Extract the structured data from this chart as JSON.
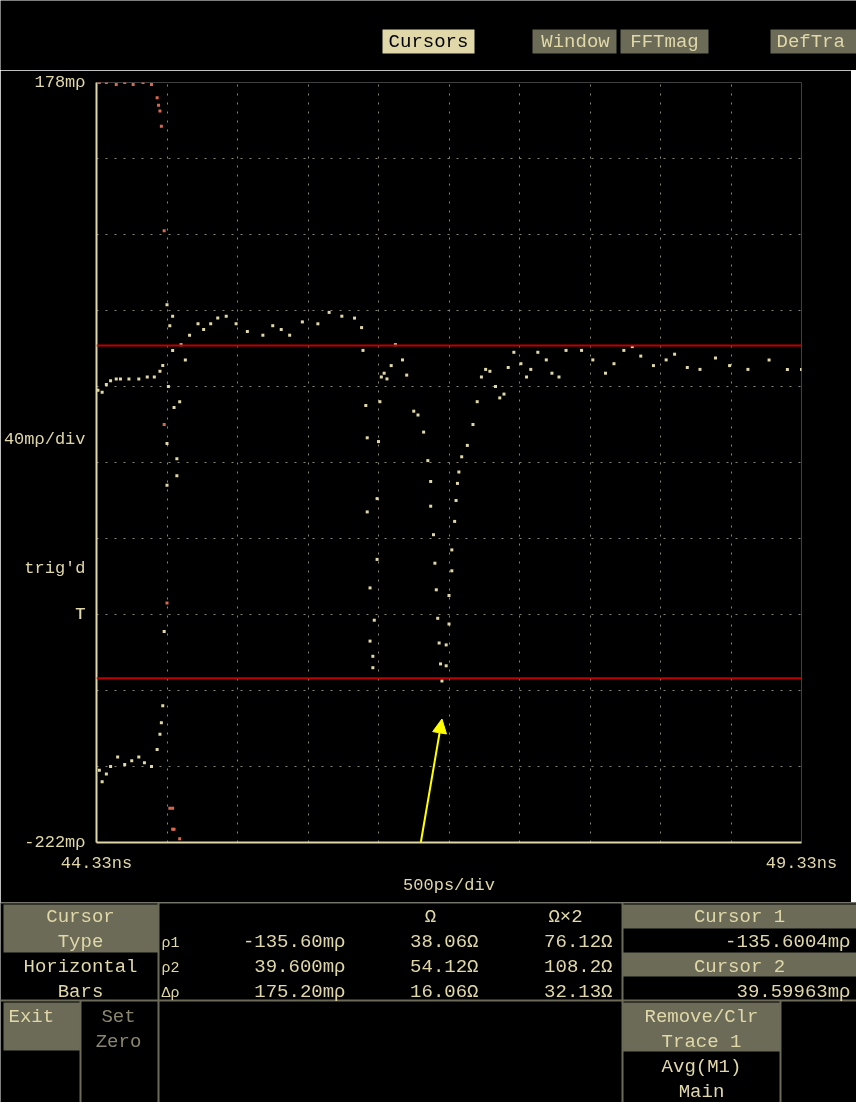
{
  "chart_data": {
    "type": "scatter",
    "xlabel": "500ps/div",
    "ylabel": "40mρ/div",
    "xlim": [
      44.33,
      49.33
    ],
    "ylim": [
      -222,
      178
    ],
    "xticks": [
      {
        "value": 44.33,
        "label": "44.33ns"
      },
      {
        "value": 44.83,
        "label": null
      },
      {
        "value": 45.33,
        "label": null
      },
      {
        "value": 45.83,
        "label": null
      },
      {
        "value": 46.33,
        "label": null
      },
      {
        "value": 46.83,
        "label": null
      },
      {
        "value": 47.33,
        "label": null
      },
      {
        "value": 47.83,
        "label": null
      },
      {
        "value": 48.33,
        "label": null
      },
      {
        "value": 48.83,
        "label": null
      },
      {
        "value": 49.33,
        "label": "49.33ns"
      }
    ],
    "yticks": [
      {
        "value": 178,
        "label": "178mρ"
      },
      {
        "value": 138,
        "label": null
      },
      {
        "value": 98,
        "label": null
      },
      {
        "value": 58,
        "label": null
      },
      {
        "value": 18,
        "label": null
      },
      {
        "value": -22,
        "label": null
      },
      {
        "value": -62,
        "label": null
      },
      {
        "value": -102,
        "label": null
      },
      {
        "value": -142,
        "label": null
      },
      {
        "value": -182,
        "label": null
      },
      {
        "value": -222,
        "label": "-222mρ"
      }
    ],
    "grid": true,
    "marker": "square",
    "series": [
      {
        "color": "#e0d8a8",
        "x": [
          44.35,
          44.37,
          44.4,
          44.43,
          44.48,
          44.53,
          44.58,
          44.63,
          44.67,
          44.72,
          44.76,
          44.78,
          44.79,
          44.8,
          44.81,
          44.83,
          44.83,
          44.84,
          44.83,
          44.88,
          44.9,
          44.9,
          44.92
        ],
        "values": [
          -184,
          -190,
          -186,
          -182,
          -177,
          -181,
          -179,
          -177,
          -180,
          -182,
          -173,
          -165,
          -159,
          -150,
          -111,
          -34,
          61,
          18,
          -12,
          7,
          -20,
          -29,
          10
        ]
      },
      {
        "color": "#e0d8a8",
        "x": [
          44.34,
          44.37,
          44.4,
          44.43,
          44.47,
          44.5,
          44.56,
          44.63,
          44.69,
          44.74,
          44.78,
          44.8,
          44.85,
          44.87,
          44.87,
          44.93,
          44.96,
          44.99,
          45.05,
          45.09,
          45.14,
          45.19,
          45.25,
          45.32,
          45.4,
          45.51,
          45.58,
          45.64,
          45.7,
          45.79,
          45.9,
          45.98,
          46.07,
          46.16,
          46.21,
          46.22,
          46.24,
          46.25,
          46.25,
          46.27,
          46.27,
          46.29,
          46.29,
          46.3,
          46.32,
          46.32,
          46.33,
          46.34,
          46.35,
          46.37,
          46.39,
          46.42,
          46.45,
          46.5,
          46.53,
          46.58,
          46.61,
          46.65,
          46.68,
          46.7,
          46.7,
          46.72,
          46.73,
          46.74,
          46.75,
          46.76,
          46.77,
          46.78,
          46.81,
          46.81,
          46.83,
          46.83,
          46.85,
          46.85,
          46.87,
          46.88,
          46.89,
          46.9,
          46.92,
          46.96,
          47.0,
          47.03,
          47.06,
          47.09,
          47.12,
          47.16,
          47.19,
          47.22,
          47.25,
          47.29,
          47.34,
          47.38,
          47.41,
          47.46,
          47.52,
          47.56,
          47.61,
          47.66,
          47.77,
          47.85,
          47.94,
          48.0,
          48.07,
          48.13,
          48.19,
          48.28,
          48.37,
          48.43,
          48.52,
          48.61,
          48.72,
          48.82,
          48.95,
          49.1,
          49.23,
          49.33
        ],
        "values": [
          16,
          15,
          19,
          21,
          22,
          22,
          22,
          22,
          23,
          23,
          26,
          29,
          50,
          55,
          37,
          40,
          32,
          45,
          51,
          48,
          51,
          54,
          55,
          51,
          47,
          45,
          50,
          48,
          45,
          52,
          51,
          57,
          55,
          54,
          49,
          37,
          8,
          -9,
          -48,
          -88,
          -116,
          -130,
          -124,
          -105,
          -73,
          -41,
          -11,
          10,
          23,
          25,
          22,
          29,
          40,
          32,
          24,
          5,
          3,
          -6,
          -21,
          -32,
          -45,
          -60,
          -75,
          -89,
          -104,
          -117,
          -128,
          -137,
          -129,
          -118,
          -107,
          -92,
          -79,
          -68,
          -53,
          -42,
          -33,
          -27,
          -19,
          -13,
          -2,
          10,
          23,
          27,
          26,
          18,
          12,
          14,
          28,
          36,
          30,
          23,
          27,
          36,
          32,
          25,
          23,
          37,
          37,
          32,
          25,
          30,
          37,
          39,
          34,
          29,
          32,
          35,
          28,
          27,
          33,
          29,
          27,
          32,
          27,
          27
        ]
      },
      {
        "color": "#d86850",
        "x": [
          44.35,
          44.4,
          44.47,
          44.53,
          44.59,
          44.66,
          44.72,
          44.76,
          44.77,
          44.78,
          44.79,
          44.81,
          44.81,
          44.83,
          44.85,
          44.87,
          44.87,
          44.88,
          44.92
        ],
        "values": [
          178,
          178,
          177,
          178,
          177,
          178,
          177,
          170,
          166,
          163,
          155,
          100,
          -2,
          -96,
          -204,
          -204,
          -215,
          -215,
          -220
        ]
      }
    ],
    "ref_lines": [
      {
        "axis": "y",
        "value": 39.6,
        "color": "#c00000"
      },
      {
        "axis": "y",
        "value": -135.6,
        "color": "#c00000"
      }
    ],
    "annotations": [
      "Cursors",
      "Window",
      "FFTmag",
      "DefTra",
      "trig'd",
      "T",
      "Cursor",
      "Type",
      "Horizontal",
      "Bars",
      "Ω",
      "Ω×2",
      "ρ1",
      "-135.60mρ",
      "38.06Ω",
      "76.12Ω",
      "ρ2",
      "39.600mρ",
      "54.12Ω",
      "108.2Ω",
      "Δρ",
      "175.20mρ",
      "16.06Ω",
      "32.13Ω",
      "Cursor 1",
      "-135.6004mρ",
      "Cursor 2",
      "39.59963mρ",
      "Exit",
      "Set",
      "Zero",
      "Remove/Clr",
      "Trace 1",
      "Avg(M1)",
      "Main"
    ]
  }
}
